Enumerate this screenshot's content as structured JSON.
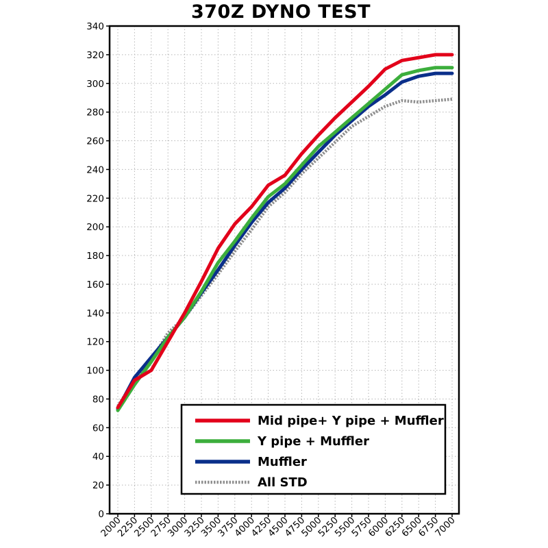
{
  "chart_data": {
    "type": "line",
    "title": "370Z DYNO TEST",
    "xlabel": "",
    "ylabel": "",
    "x": [
      2000,
      2250,
      2500,
      2750,
      3000,
      3250,
      3500,
      3750,
      4000,
      4250,
      4500,
      4750,
      5000,
      5250,
      5500,
      5750,
      6000,
      6250,
      6500,
      6750,
      7000
    ],
    "x_ticks": [
      "2000",
      "2250",
      "2500",
      "2750",
      "3000",
      "3250",
      "3500",
      "3750",
      "4000",
      "4250",
      "4500",
      "4750",
      "5000",
      "5250",
      "5500",
      "5750",
      "6000",
      "6250",
      "6500",
      "6750",
      "7000"
    ],
    "y_ticks": [
      "0",
      "20",
      "40",
      "60",
      "80",
      "100",
      "120",
      "140",
      "160",
      "180",
      "200",
      "220",
      "240",
      "260",
      "280",
      "300",
      "320",
      "340"
    ],
    "ylim": [
      0,
      340
    ],
    "grid": "dotted",
    "legend_position": "bottom-right",
    "series": [
      {
        "name": "Mid pipe+ Y pipe + Muffler",
        "color": "#e2001a",
        "style": "solid",
        "values": [
          74,
          93,
          100,
          120,
          140,
          162,
          185,
          202,
          214,
          229,
          236,
          251,
          264,
          276,
          287,
          298,
          310,
          316,
          318,
          320,
          320
        ]
      },
      {
        "name": "Y pipe + Muffler",
        "color": "#3cae3c",
        "style": "solid",
        "values": [
          72,
          90,
          106,
          123,
          137,
          155,
          175,
          190,
          206,
          221,
          230,
          243,
          256,
          266,
          276,
          286,
          296,
          306,
          309,
          311,
          311
        ]
      },
      {
        "name": "Muffler",
        "color": "#0a2f8a",
        "style": "solid",
        "values": [
          73,
          95,
          109,
          123,
          137,
          154,
          170,
          187,
          203,
          217,
          227,
          240,
          252,
          264,
          274,
          284,
          292,
          301,
          305,
          307,
          307
        ]
      },
      {
        "name": "All STD",
        "color": "#8f8f8f",
        "style": "dotted",
        "values": [
          75,
          93,
          107,
          126,
          137,
          152,
          167,
          183,
          198,
          214,
          224,
          237,
          248,
          259,
          270,
          277,
          284,
          288,
          287,
          288,
          289
        ]
      }
    ]
  }
}
